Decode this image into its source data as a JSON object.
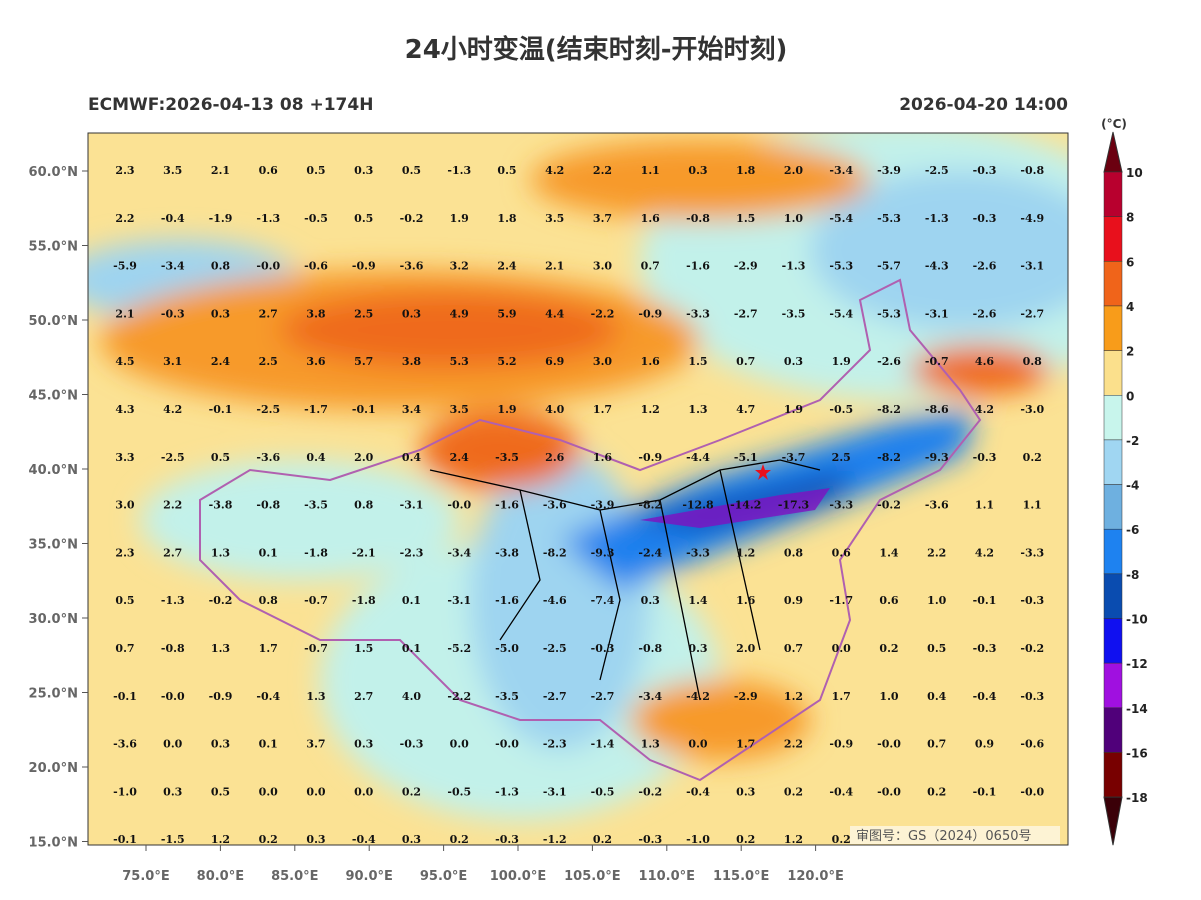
{
  "header": {
    "title": "24小时变温(结束时刻-开始时刻)",
    "left": "ECMWF:2026-04-13 08 +174H",
    "right": "2026-04-20 14:00"
  },
  "map": {
    "lat_labels": [
      "60.0°N",
      "55.0°N",
      "50.0°N",
      "45.0°N",
      "40.0°N",
      "35.0°N",
      "30.0°N",
      "25.0°N",
      "20.0°N",
      "15.0°N"
    ],
    "lon_labels": [
      "75.0°E",
      "80.0°E",
      "85.0°E",
      "90.0°E",
      "95.0°E",
      "100.0°E",
      "105.0°E",
      "110.0°E",
      "115.0°E",
      "120.0°E"
    ],
    "note": "审图号：GS（2024）0650号",
    "rows": [
      [
        "2.3",
        "3.5",
        "2.1",
        "0.6",
        "0.5",
        "0.3",
        "0.5",
        "-1.3",
        "0.5",
        "4.2",
        "2.2",
        "1.1",
        "0.3",
        "1.8",
        "2.0",
        "-3.4",
        "-3.9",
        "-2.5",
        "-0.3",
        "-0.8"
      ],
      [
        "2.2",
        "-0.4",
        "-1.9",
        "-1.3",
        "-0.5",
        "0.5",
        "-0.2",
        "1.9",
        "1.8",
        "3.5",
        "3.7",
        "1.6",
        "-0.8",
        "1.5",
        "1.0",
        "-5.4",
        "-5.3",
        "-1.3",
        "-0.3",
        "-4.9"
      ],
      [
        "-5.9",
        "-3.4",
        "0.8",
        "-0.0",
        "-0.6",
        "-0.9",
        "-3.6",
        "3.2",
        "2.4",
        "2.1",
        "3.0",
        "0.7",
        "-1.6",
        "-2.9",
        "-1.3",
        "-5.3",
        "-5.7",
        "-4.3",
        "-2.6",
        "-3.1"
      ],
      [
        "2.1",
        "-0.3",
        "0.3",
        "2.7",
        "3.8",
        "2.5",
        "0.3",
        "4.9",
        "5.9",
        "4.4",
        "-2.2",
        "-0.9",
        "-3.3",
        "-2.7",
        "-3.5",
        "-5.4",
        "-5.3",
        "-3.1",
        "-2.6",
        "-2.7"
      ],
      [
        "4.5",
        "3.1",
        "2.4",
        "2.5",
        "3.6",
        "5.7",
        "3.8",
        "5.3",
        "5.2",
        "6.9",
        "3.0",
        "1.6",
        "1.5",
        "0.7",
        "0.3",
        "1.9",
        "-2.6",
        "-0.7",
        "4.6",
        "0.8"
      ],
      [
        "4.3",
        "4.2",
        "-0.1",
        "-2.5",
        "-1.7",
        "-0.1",
        "3.4",
        "3.5",
        "1.9",
        "4.0",
        "1.7",
        "1.2",
        "1.3",
        "4.7",
        "1.9",
        "-0.5",
        "-8.2",
        "-8.6",
        "4.2",
        "-3.0"
      ],
      [
        "3.3",
        "-2.5",
        "0.5",
        "-3.6",
        "0.4",
        "2.0",
        "0.4",
        "2.4",
        "-3.5",
        "2.6",
        "1.6",
        "-0.9",
        "-4.4",
        "-5.1",
        "-3.7",
        "2.5",
        "-8.2",
        "-9.3",
        "-0.3",
        "0.2"
      ],
      [
        "3.0",
        "2.2",
        "-3.8",
        "-0.8",
        "-3.5",
        "0.8",
        "-3.1",
        "-0.0",
        "-1.6",
        "-3.6",
        "-3.9",
        "-8.2",
        "-12.8",
        "-14.2",
        "-17.3",
        "-3.3",
        "-0.2",
        "-3.6",
        "1.1",
        "1.1"
      ],
      [
        "2.3",
        "2.7",
        "1.3",
        "0.1",
        "-1.8",
        "-2.1",
        "-2.3",
        "-3.4",
        "-3.8",
        "-8.2",
        "-9.3",
        "-2.4",
        "-3.3",
        "1.2",
        "0.8",
        "0.6",
        "1.4",
        "2.2",
        "4.2",
        "-3.3"
      ],
      [
        "0.5",
        "-1.3",
        "-0.2",
        "0.8",
        "-0.7",
        "-1.8",
        "0.1",
        "-3.1",
        "-1.6",
        "-4.6",
        "-7.4",
        "0.3",
        "1.4",
        "1.6",
        "0.9",
        "-1.7",
        "0.6",
        "1.0",
        "-0.1",
        "-0.3"
      ],
      [
        "0.7",
        "-0.8",
        "1.3",
        "1.7",
        "-0.7",
        "1.5",
        "0.1",
        "-5.2",
        "-5.0",
        "-2.5",
        "-0.3",
        "-0.8",
        "0.3",
        "2.0",
        "0.7",
        "0.0",
        "0.2",
        "0.5",
        "-0.3",
        "-0.2"
      ],
      [
        "-0.1",
        "-0.0",
        "-0.9",
        "-0.4",
        "1.3",
        "2.7",
        "4.0",
        "-2.2",
        "-3.5",
        "-2.7",
        "-2.7",
        "-3.4",
        "-4.2",
        "-2.9",
        "1.2",
        "1.7",
        "1.0",
        "0.4",
        "-0.4",
        "-0.3"
      ],
      [
        "-3.6",
        "0.0",
        "0.3",
        "0.1",
        "3.7",
        "0.3",
        "-0.3",
        "0.0",
        "-0.0",
        "-2.3",
        "-1.4",
        "1.3",
        "0.0",
        "1.7",
        "2.2",
        "-0.9",
        "-0.0",
        "0.7",
        "0.9",
        "-0.6"
      ],
      [
        "-1.0",
        "0.3",
        "0.5",
        "0.0",
        "0.0",
        "0.0",
        "0.2",
        "-0.5",
        "-1.3",
        "-3.1",
        "-0.5",
        "-0.2",
        "-0.4",
        "0.3",
        "0.2",
        "-0.4",
        "-0.0",
        "0.2",
        "-0.1",
        "-0.0"
      ],
      [
        "-0.1",
        "-1.5",
        "1.2",
        "0.2",
        "0.3",
        "-0.4",
        "0.3",
        "0.2",
        "-0.3",
        "-1.2",
        "0.2",
        "-0.3",
        "-1.0",
        "0.2",
        "1.2",
        "0.2"
      ]
    ]
  },
  "colorbar": {
    "unit": "(°C)",
    "ticks": [
      "10",
      "8",
      "6",
      "4",
      "2",
      "0",
      "-2",
      "-4",
      "-6",
      "-8",
      "-10",
      "-12",
      "-14",
      "-16",
      "-18"
    ],
    "colors": [
      "#6b0010",
      "#b8002e",
      "#e8101c",
      "#f0641a",
      "#f89c1a",
      "#fbe08c",
      "#c8f5ec",
      "#a0d6f2",
      "#6eb0e0",
      "#1e82f0",
      "#0a4cb0",
      "#1010f0",
      "#a010e0",
      "#50007a",
      "#780000",
      "#3a0008"
    ]
  }
}
